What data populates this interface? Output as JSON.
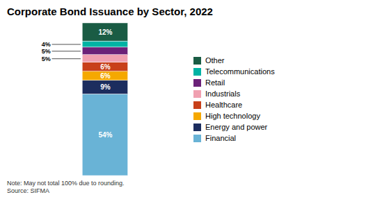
{
  "chart_data": {
    "type": "bar",
    "stacked": true,
    "title": "Corporate Bond Issuance by Sector, 2022",
    "note": "Note: May not total 100% due to rounding.\nSource: SIFMA",
    "categories": [
      null
    ],
    "series": [
      {
        "name": "Financial",
        "color": "#69b3d6",
        "values": [
          54
        ],
        "value_labels": [
          "54%"
        ]
      },
      {
        "name": "Energy and power",
        "color": "#1c2d5e",
        "values": [
          9
        ],
        "value_labels": [
          "9%"
        ]
      },
      {
        "name": "High technology",
        "color": "#f5a800",
        "values": [
          6
        ],
        "value_labels": [
          "6%"
        ]
      },
      {
        "name": "Healthcare",
        "color": "#c8401a",
        "values": [
          6
        ],
        "value_labels": [
          "6%"
        ]
      },
      {
        "name": "Industrials",
        "color": "#f0a0b0",
        "values": [
          5
        ],
        "value_labels": [
          "5%"
        ]
      },
      {
        "name": "Retail",
        "color": "#6b2178",
        "values": [
          5
        ],
        "value_labels": [
          "5%"
        ]
      },
      {
        "name": "Telecommunications",
        "color": "#00b3a4",
        "values": [
          4
        ],
        "value_labels": [
          "4%"
        ]
      },
      {
        "name": "Other",
        "color": "#1a5c44",
        "values": [
          12
        ],
        "value_labels": [
          "12%"
        ]
      }
    ],
    "ylim": [
      0,
      101
    ],
    "data_labels": true,
    "tick_labels": false,
    "grid": false,
    "legend": "right"
  }
}
